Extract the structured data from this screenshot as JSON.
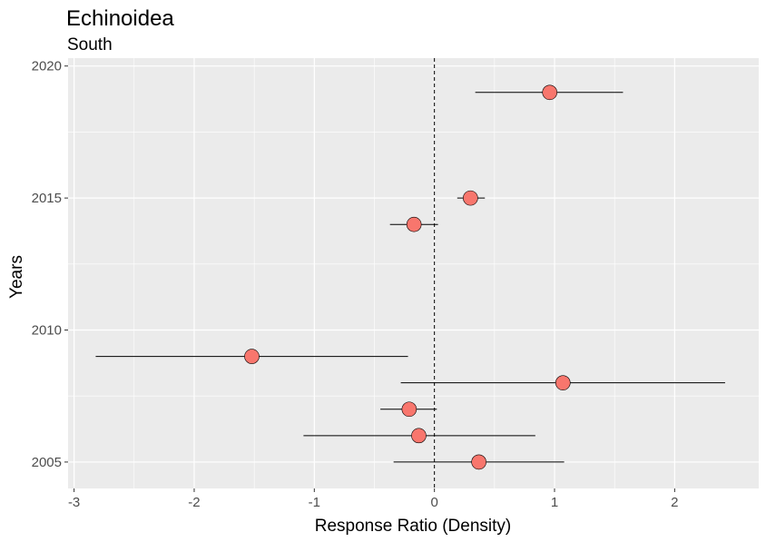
{
  "chart_data": {
    "type": "scatter",
    "title": "Echinoidea",
    "subtitle": "South",
    "xlabel": "Response Ratio (Density)",
    "ylabel": "Years",
    "xlim": [
      -3.05,
      2.7
    ],
    "ylim": [
      2004.0,
      2020.3
    ],
    "x_ticks": [
      -3,
      -2,
      -1,
      0,
      1,
      2
    ],
    "y_ticks": [
      2005,
      2010,
      2015,
      2020
    ],
    "x_tick_labels": [
      "-3",
      "-2",
      "-1",
      "0",
      "1",
      "2"
    ],
    "y_tick_labels": [
      "2005",
      "2010",
      "2015",
      "2020"
    ],
    "reference_line_x": 0,
    "grid": true,
    "point_color": "#f8766d",
    "panel_color": "#ebebeb",
    "points": [
      {
        "year": 2005,
        "x": 0.37,
        "lo": -0.34,
        "hi": 1.08
      },
      {
        "year": 2006,
        "x": -0.13,
        "lo": -1.09,
        "hi": 0.84
      },
      {
        "year": 2007,
        "x": -0.21,
        "lo": -0.45,
        "hi": 0.02
      },
      {
        "year": 2008,
        "x": 1.07,
        "lo": -0.28,
        "hi": 2.42
      },
      {
        "year": 2009,
        "x": -1.52,
        "lo": -2.82,
        "hi": -0.22
      },
      {
        "year": 2014,
        "x": -0.17,
        "lo": -0.37,
        "hi": 0.03
      },
      {
        "year": 2015,
        "x": 0.3,
        "lo": 0.19,
        "hi": 0.42
      },
      {
        "year": 2019,
        "x": 0.96,
        "lo": 0.34,
        "hi": 1.57
      }
    ]
  }
}
